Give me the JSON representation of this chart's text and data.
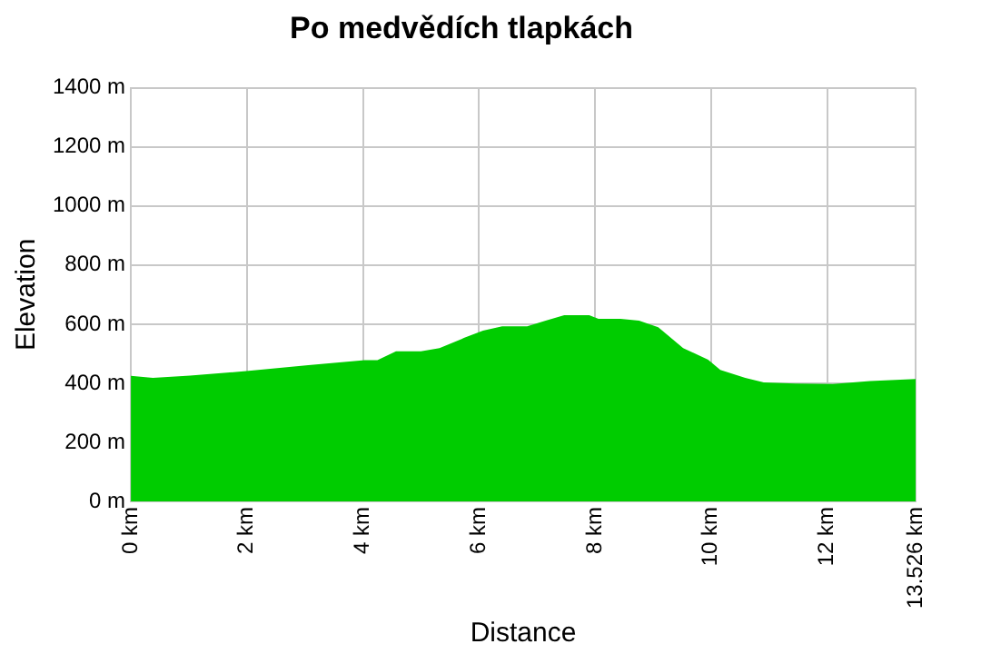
{
  "chart_data": {
    "type": "area",
    "title": "Po medvědích tlapkách",
    "xlabel": "Distance",
    "ylabel": "Elevation",
    "x": [
      0,
      0.38,
      1.02,
      1.99,
      3.06,
      4.03,
      4.25,
      4.57,
      5.0,
      5.32,
      5.75,
      6.07,
      6.4,
      6.83,
      7.15,
      7.47,
      7.9,
      8.06,
      8.44,
      8.76,
      9.09,
      9.52,
      9.95,
      10.16,
      10.59,
      10.91,
      11.45,
      12.1,
      12.74,
      13.526
    ],
    "series": [
      {
        "color": "#00cc00",
        "values": [
          425,
          418,
          426,
          441,
          461,
          478,
          478,
          508,
          508,
          519,
          554,
          578,
          593,
          593,
          612,
          630,
          630,
          618,
          618,
          612,
          590,
          519,
          480,
          445,
          418,
          403,
          399,
          397,
          407,
          414
        ]
      }
    ],
    "xlim": [
      0,
      13.526
    ],
    "xticks": [
      {
        "value": 0,
        "label": "0 km"
      },
      {
        "value": 2,
        "label": "2 km"
      },
      {
        "value": 4,
        "label": "4 km"
      },
      {
        "value": 6,
        "label": "6 km"
      },
      {
        "value": 8,
        "label": "8 km"
      },
      {
        "value": 10,
        "label": "10 km"
      },
      {
        "value": 12,
        "label": "12 km"
      },
      {
        "value": 13.526,
        "label": "13.526 km"
      }
    ],
    "ylim": [
      0,
      1400
    ],
    "yticks": [
      {
        "value": 0,
        "label": "0 m"
      },
      {
        "value": 200,
        "label": "200 m"
      },
      {
        "value": 400,
        "label": "400 m"
      },
      {
        "value": 600,
        "label": "600 m"
      },
      {
        "value": 800,
        "label": "800 m"
      },
      {
        "value": 1000,
        "label": "1000 m"
      },
      {
        "value": 1200,
        "label": "1200 m"
      },
      {
        "value": 1400,
        "label": "1400 m"
      }
    ],
    "grid": true,
    "legend": false
  }
}
